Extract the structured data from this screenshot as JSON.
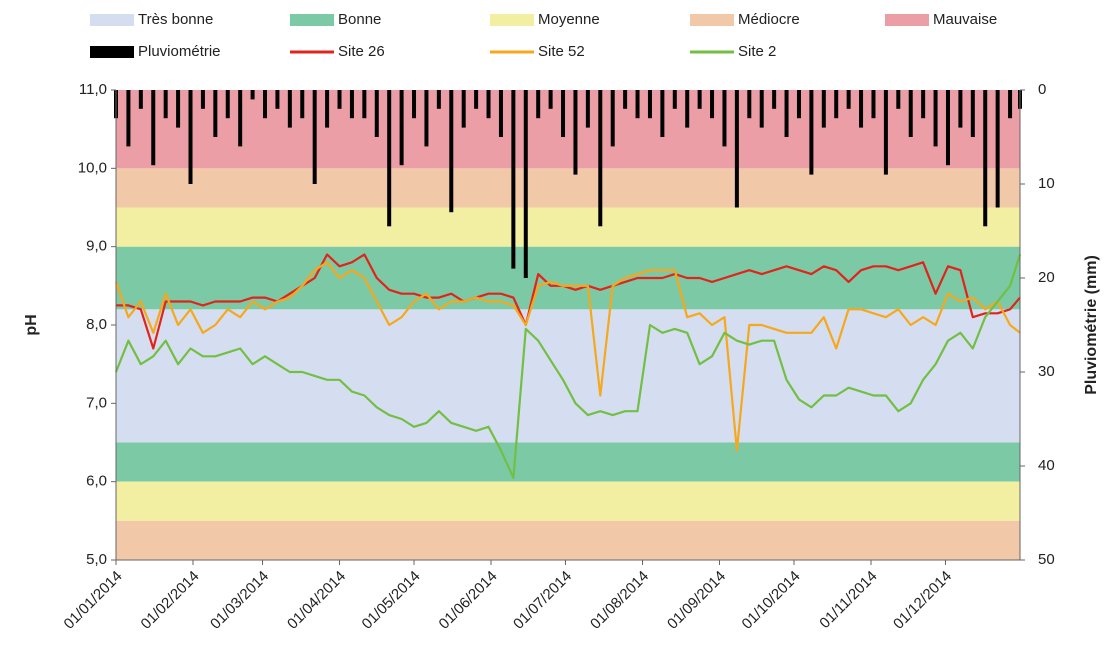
{
  "chart_data": {
    "type": "line",
    "ylabel": "pH",
    "y2label": "Pluviométrie  (mm)",
    "bands": [
      {
        "name": "Très bonne",
        "color": "#d5def0",
        "ranges": [
          [
            6.5,
            8.2
          ]
        ]
      },
      {
        "name": "Bonne",
        "color": "#7cc9a6",
        "ranges": [
          [
            8.2,
            9.0
          ],
          [
            6.0,
            6.5
          ]
        ]
      },
      {
        "name": "Moyenne",
        "color": "#f3efa2",
        "ranges": [
          [
            9.0,
            9.5
          ],
          [
            5.5,
            6.0
          ]
        ]
      },
      {
        "name": "Médiocre",
        "color": "#f1c9a9",
        "ranges": [
          [
            9.5,
            10.0
          ],
          [
            5.0,
            5.5
          ]
        ]
      },
      {
        "name": "Mauvaise",
        "color": "#ec9ea7",
        "ranges": [
          [
            10.0,
            11.0
          ]
        ]
      }
    ],
    "x": [
      "01/01/2014",
      "06/01/2014",
      "11/01/2014",
      "16/01/2014",
      "21/01/2014",
      "26/01/2014",
      "31/01/2014",
      "05/02/2014",
      "10/02/2014",
      "15/02/2014",
      "20/02/2014",
      "25/02/2014",
      "02/03/2014",
      "07/03/2014",
      "12/03/2014",
      "17/03/2014",
      "22/03/2014",
      "27/03/2014",
      "01/04/2014",
      "06/04/2014",
      "11/04/2014",
      "16/04/2014",
      "21/04/2014",
      "26/04/2014",
      "01/05/2014",
      "06/05/2014",
      "11/05/2014",
      "16/05/2014",
      "21/05/2014",
      "26/05/2014",
      "31/05/2014",
      "05/06/2014",
      "10/06/2014",
      "15/06/2014",
      "20/06/2014",
      "25/06/2014",
      "30/06/2014",
      "05/07/2014",
      "10/07/2014",
      "15/07/2014",
      "20/07/2014",
      "25/07/2014",
      "30/07/2014",
      "04/08/2014",
      "09/08/2014",
      "14/08/2014",
      "19/08/2014",
      "24/08/2014",
      "29/08/2014",
      "03/09/2014",
      "08/09/2014",
      "13/09/2014",
      "18/09/2014",
      "23/09/2014",
      "28/09/2014",
      "03/10/2014",
      "08/10/2014",
      "13/10/2014",
      "18/10/2014",
      "23/10/2014",
      "28/10/2014",
      "02/11/2014",
      "07/11/2014",
      "12/11/2014",
      "17/11/2014",
      "22/11/2014",
      "27/11/2014",
      "02/12/2014",
      "07/12/2014",
      "12/12/2014",
      "17/12/2014",
      "22/12/2014",
      "27/12/2014",
      "31/12/2014"
    ],
    "series": [
      {
        "name": "Pluviométrie",
        "type": "bar",
        "axis": "y2",
        "color": "#000000",
        "values": [
          3,
          6,
          2,
          8,
          3,
          4,
          10,
          2,
          5,
          3,
          6,
          1,
          3,
          2,
          4,
          3,
          10,
          4,
          2,
          3,
          3,
          5,
          14.5,
          8,
          3,
          6,
          2,
          13,
          4,
          2,
          3,
          5,
          19,
          20,
          3,
          2,
          5,
          9,
          4,
          14.5,
          6,
          2,
          3,
          3,
          5,
          2,
          4,
          2,
          3,
          6,
          12.5,
          3,
          4,
          2,
          5,
          3,
          9,
          4,
          3,
          2,
          4,
          3,
          9,
          2,
          5,
          3,
          6,
          8,
          4,
          5,
          14.5,
          12.5,
          3,
          2
        ]
      },
      {
        "name": "Site 26",
        "type": "line",
        "color": "#e0241b",
        "values": [
          8.25,
          8.25,
          8.2,
          7.7,
          8.3,
          8.3,
          8.3,
          8.25,
          8.3,
          8.3,
          8.3,
          8.35,
          8.35,
          8.3,
          8.4,
          8.5,
          8.6,
          8.9,
          8.75,
          8.8,
          8.9,
          8.6,
          8.45,
          8.4,
          8.4,
          8.35,
          8.35,
          8.4,
          8.3,
          8.35,
          8.4,
          8.4,
          8.35,
          8.0,
          8.65,
          8.5,
          8.5,
          8.45,
          8.5,
          8.45,
          8.5,
          8.55,
          8.6,
          8.6,
          8.6,
          8.65,
          8.6,
          8.6,
          8.55,
          8.6,
          8.65,
          8.7,
          8.65,
          8.7,
          8.75,
          8.7,
          8.65,
          8.75,
          8.7,
          8.55,
          8.7,
          8.75,
          8.75,
          8.7,
          8.75,
          8.8,
          8.4,
          8.75,
          8.7,
          8.1,
          8.15,
          8.15,
          8.2,
          8.35
        ]
      },
      {
        "name": "Site 52",
        "type": "line",
        "color": "#f5a81c",
        "values": [
          8.55,
          8.1,
          8.3,
          7.9,
          8.4,
          8.0,
          8.2,
          7.9,
          8.0,
          8.2,
          8.1,
          8.3,
          8.2,
          8.3,
          8.35,
          8.5,
          8.7,
          8.8,
          8.6,
          8.7,
          8.6,
          8.3,
          8.0,
          8.1,
          8.3,
          8.4,
          8.2,
          8.3,
          8.3,
          8.35,
          8.3,
          8.3,
          8.25,
          8.0,
          8.5,
          8.55,
          8.5,
          8.5,
          8.5,
          7.1,
          8.5,
          8.6,
          8.65,
          8.7,
          8.7,
          8.7,
          8.1,
          8.15,
          8.0,
          8.1,
          6.4,
          8.0,
          8.0,
          7.95,
          7.9,
          7.9,
          7.9,
          8.1,
          7.7,
          8.2,
          8.2,
          8.15,
          8.1,
          8.2,
          8.0,
          8.1,
          8.0,
          8.4,
          8.3,
          8.35,
          8.2,
          8.3,
          8.0,
          7.9
        ]
      },
      {
        "name": "Site 2",
        "type": "line",
        "color": "#72bf44",
        "values": [
          7.4,
          7.8,
          7.5,
          7.6,
          7.8,
          7.5,
          7.7,
          7.6,
          7.6,
          7.65,
          7.7,
          7.5,
          7.6,
          7.5,
          7.4,
          7.4,
          7.35,
          7.3,
          7.3,
          7.15,
          7.1,
          6.95,
          6.85,
          6.8,
          6.7,
          6.75,
          6.9,
          6.75,
          6.7,
          6.65,
          6.7,
          6.4,
          6.05,
          7.95,
          7.8,
          7.55,
          7.3,
          7.0,
          6.85,
          6.9,
          6.85,
          6.9,
          6.9,
          8.0,
          7.9,
          7.95,
          7.9,
          7.5,
          7.6,
          7.9,
          7.8,
          7.75,
          7.8,
          7.8,
          7.3,
          7.05,
          6.95,
          7.1,
          7.1,
          7.2,
          7.15,
          7.1,
          7.1,
          6.9,
          7.0,
          7.3,
          7.5,
          7.8,
          7.9,
          7.7,
          8.1,
          8.3,
          8.5,
          8.9
        ]
      }
    ],
    "xlim": [
      "01/01/2014",
      "31/12/2014"
    ],
    "xticks": [
      "01/01/2014",
      "01/02/2014",
      "01/03/2014",
      "01/04/2014",
      "01/05/2014",
      "01/06/2014",
      "01/07/2014",
      "01/08/2014",
      "01/09/2014",
      "01/10/2014",
      "01/11/2014",
      "01/12/2014"
    ],
    "ylim": [
      5,
      11
    ],
    "yticks": [
      {
        "value": 5,
        "label": "5,0"
      },
      {
        "value": 6,
        "label": "6,0"
      },
      {
        "value": 7,
        "label": "7,0"
      },
      {
        "value": 8,
        "label": "8,0"
      },
      {
        "value": 9,
        "label": "9,0"
      },
      {
        "value": 10,
        "label": "10,0"
      },
      {
        "value": 11,
        "label": "11,0"
      }
    ],
    "y2lim": [
      0,
      50
    ],
    "y2ticks": [
      0,
      10,
      20,
      30,
      40,
      50
    ],
    "y2_reversed": true,
    "legend": "top"
  }
}
